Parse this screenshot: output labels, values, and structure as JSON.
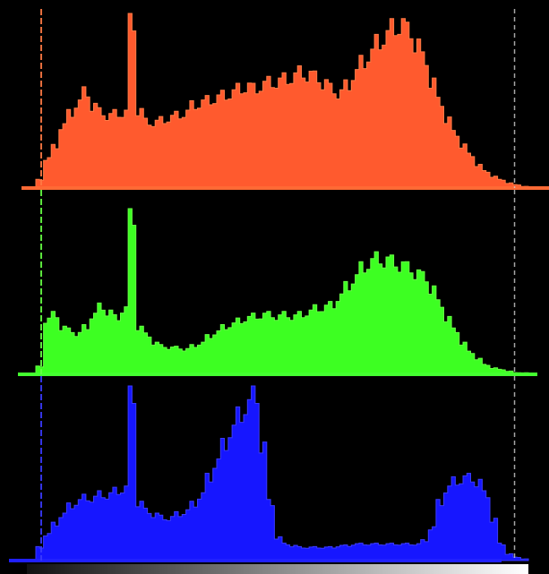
{
  "chart_data": [
    {
      "type": "area",
      "color": "#ff5a2e",
      "glow": "#ff7a45",
      "baseline_color": "#ff6a35",
      "bins": 64,
      "clip_markers": [
        1,
        63
      ],
      "values": [
        0.05,
        0.18,
        0.25,
        0.38,
        0.45,
        0.52,
        0.58,
        0.5,
        0.46,
        0.44,
        0.45,
        0.46,
        1.0,
        0.47,
        0.4,
        0.4,
        0.41,
        0.43,
        0.44,
        0.46,
        0.5,
        0.52,
        0.53,
        0.55,
        0.56,
        0.58,
        0.6,
        0.62,
        0.6,
        0.63,
        0.64,
        0.65,
        0.66,
        0.68,
        0.7,
        0.69,
        0.67,
        0.64,
        0.6,
        0.58,
        0.62,
        0.7,
        0.76,
        0.82,
        0.88,
        0.93,
        0.97,
        1.0,
        0.95,
        0.88,
        0.78,
        0.65,
        0.52,
        0.42,
        0.33,
        0.26,
        0.2,
        0.14,
        0.1,
        0.07,
        0.05,
        0.03,
        0.02,
        0.01
      ]
    },
    {
      "type": "area",
      "color": "#3dff22",
      "glow": "#66ff44",
      "baseline_color": "#44ff30",
      "bins": 64,
      "clip_markers": [
        1,
        63
      ],
      "values": [
        0.05,
        0.35,
        0.38,
        0.3,
        0.28,
        0.26,
        0.3,
        0.38,
        0.43,
        0.4,
        0.36,
        0.42,
        1.0,
        0.3,
        0.25,
        0.2,
        0.18,
        0.17,
        0.17,
        0.16,
        0.18,
        0.2,
        0.24,
        0.27,
        0.3,
        0.32,
        0.34,
        0.36,
        0.37,
        0.38,
        0.38,
        0.37,
        0.38,
        0.37,
        0.38,
        0.4,
        0.42,
        0.43,
        0.44,
        0.5,
        0.56,
        0.62,
        0.68,
        0.72,
        0.74,
        0.73,
        0.72,
        0.7,
        0.68,
        0.65,
        0.62,
        0.55,
        0.45,
        0.36,
        0.28,
        0.2,
        0.14,
        0.1,
        0.06,
        0.04,
        0.03,
        0.02,
        0.01,
        0.01
      ]
    },
    {
      "type": "area",
      "color": "#1616ff",
      "glow": "#3a3aff",
      "baseline_color": "#2020ff",
      "bins": 64,
      "clip_markers": [
        1,
        63
      ],
      "values": [
        0.08,
        0.16,
        0.22,
        0.28,
        0.33,
        0.36,
        0.38,
        0.38,
        0.4,
        0.4,
        0.42,
        0.44,
        1.0,
        0.35,
        0.3,
        0.28,
        0.26,
        0.26,
        0.28,
        0.3,
        0.34,
        0.4,
        0.5,
        0.6,
        0.7,
        0.8,
        0.88,
        0.95,
        1.0,
        0.7,
        0.35,
        0.14,
        0.1,
        0.09,
        0.08,
        0.08,
        0.08,
        0.08,
        0.08,
        0.09,
        0.09,
        0.1,
        0.1,
        0.1,
        0.1,
        0.1,
        0.1,
        0.1,
        0.1,
        0.1,
        0.12,
        0.2,
        0.35,
        0.44,
        0.48,
        0.5,
        0.5,
        0.48,
        0.4,
        0.25,
        0.1,
        0.04,
        0.02,
        0.01
      ]
    }
  ]
}
